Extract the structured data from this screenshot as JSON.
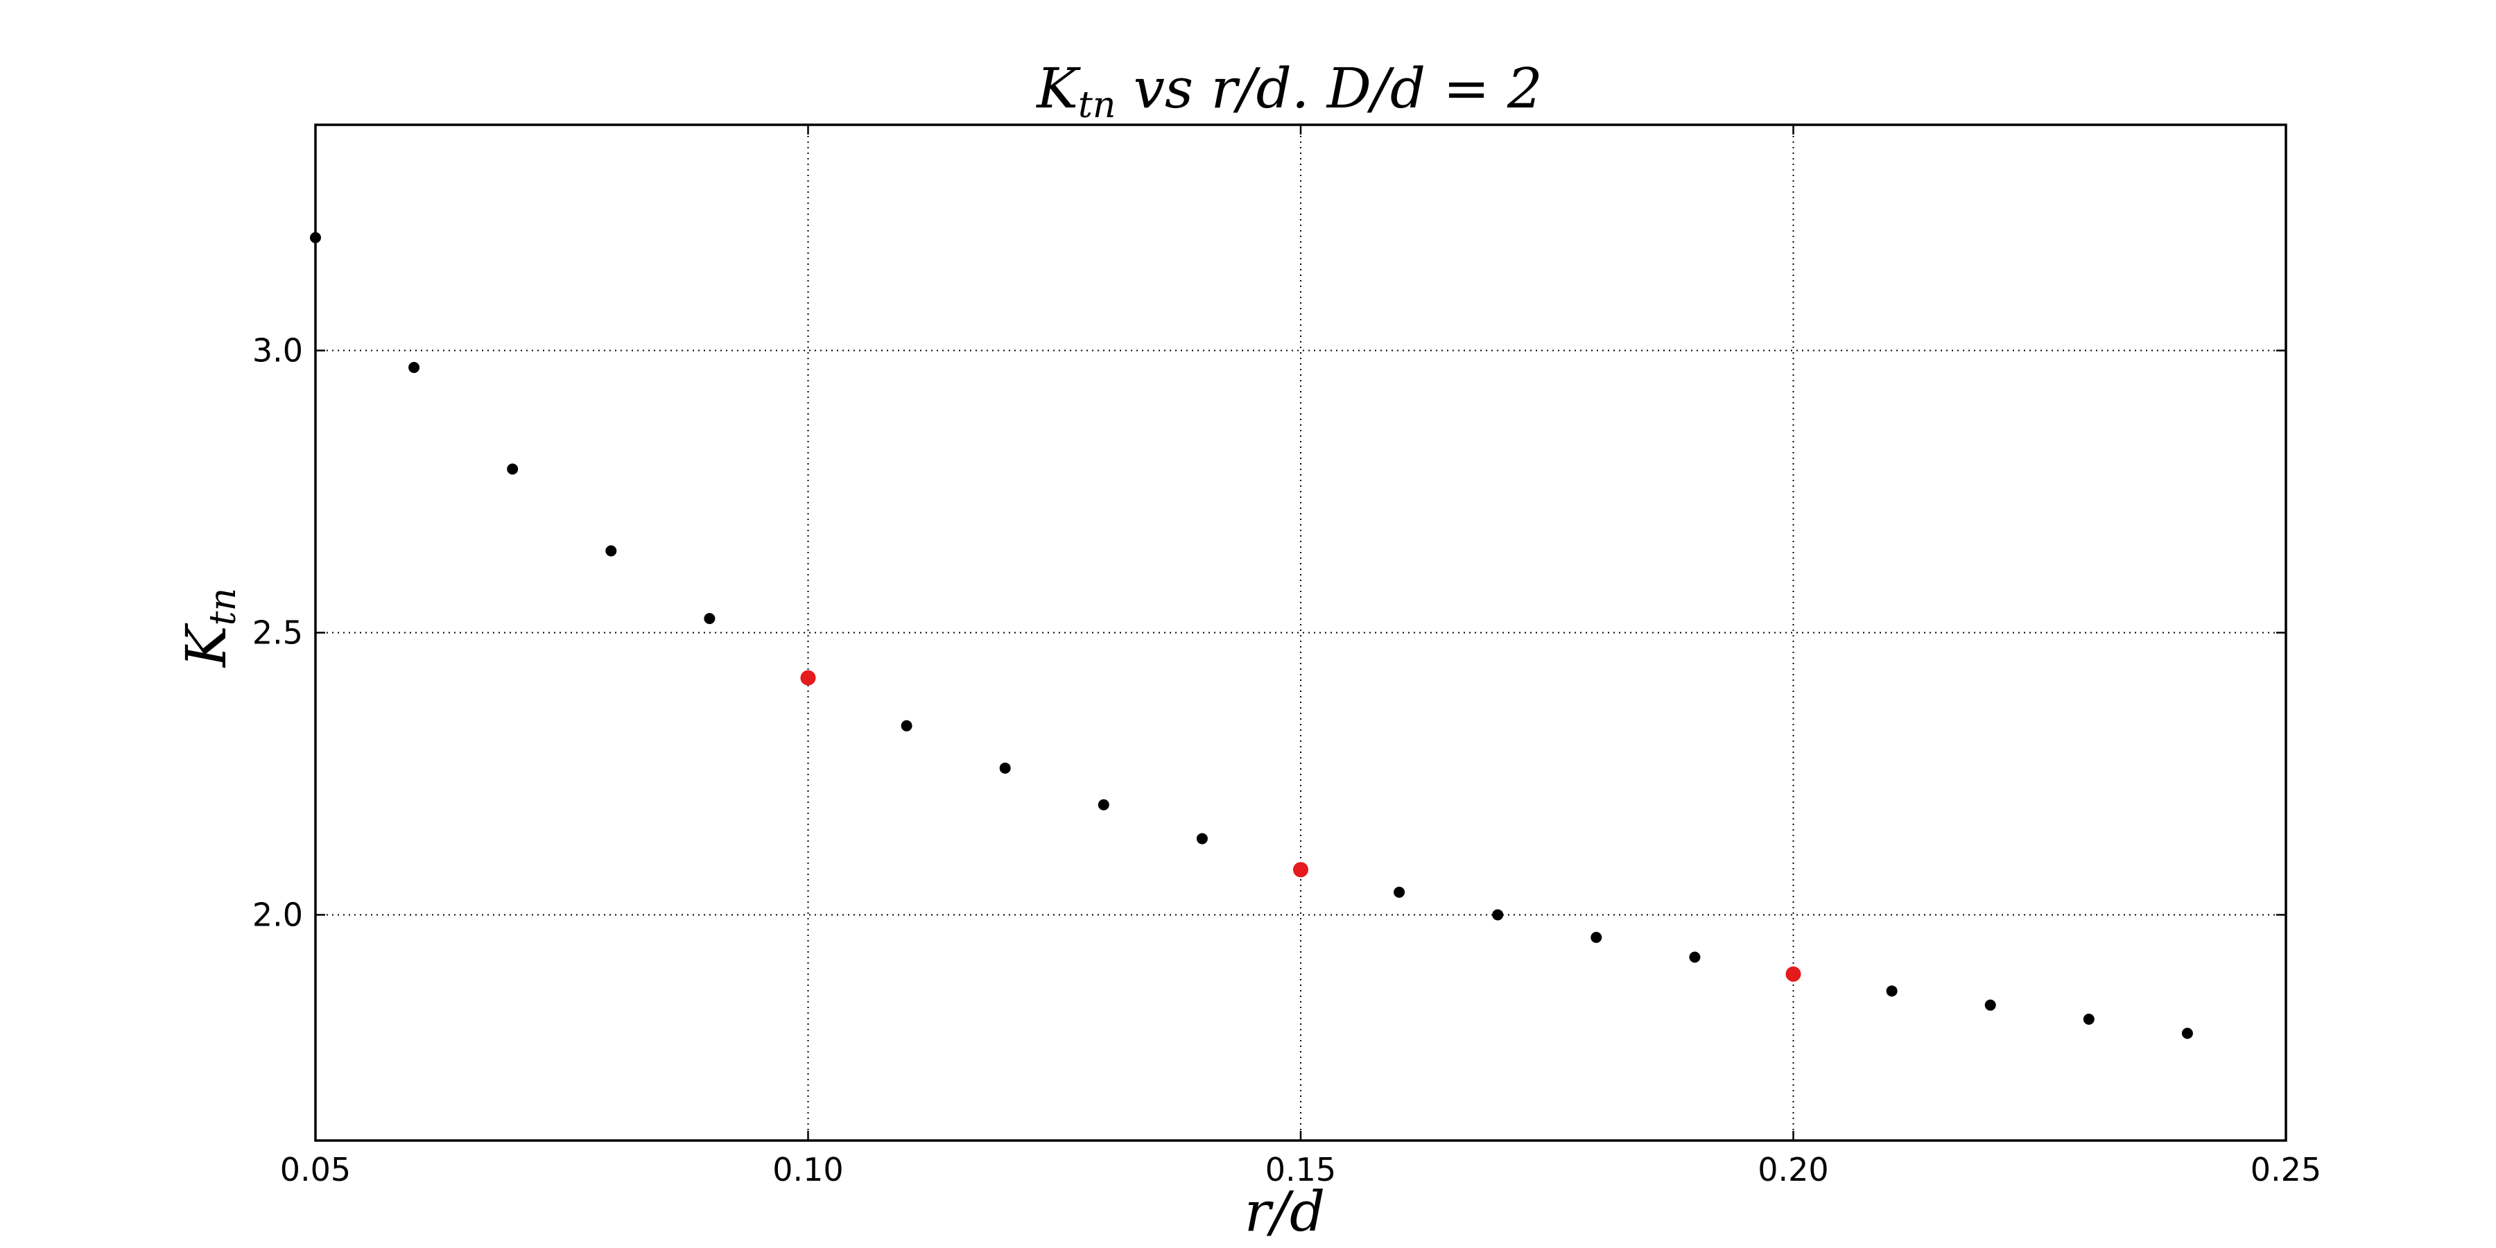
{
  "chart_data": {
    "type": "scatter",
    "title": "K_tn vs r/d. D/d = 2",
    "xlabel": "r/d",
    "ylabel": "K_tn",
    "xlim": [
      0.05,
      0.25
    ],
    "ylim": [
      1.6,
      3.4
    ],
    "xticks": [
      "0.05",
      "0.10",
      "0.15",
      "0.20",
      "0.25"
    ],
    "yticks": [
      "2.0",
      "2.5",
      "3.0"
    ],
    "grid": true,
    "series": [
      {
        "color": "#000000",
        "marker": "small-dot",
        "x": [
          0.05,
          0.06,
          0.07,
          0.08,
          0.09,
          0.11,
          0.12,
          0.13,
          0.14,
          0.16,
          0.17,
          0.18,
          0.19,
          0.21,
          0.22,
          0.23,
          0.24
        ],
        "y": [
          3.2,
          2.97,
          2.79,
          2.645,
          2.525,
          2.335,
          2.26,
          2.195,
          2.135,
          2.04,
          2.0,
          1.96,
          1.925,
          1.865,
          1.84,
          1.815,
          1.79
        ]
      },
      {
        "color": "#e41a1c",
        "marker": "large-dot",
        "x": [
          0.1,
          0.15,
          0.2
        ],
        "y": [
          2.42,
          2.08,
          1.895
        ]
      }
    ]
  }
}
